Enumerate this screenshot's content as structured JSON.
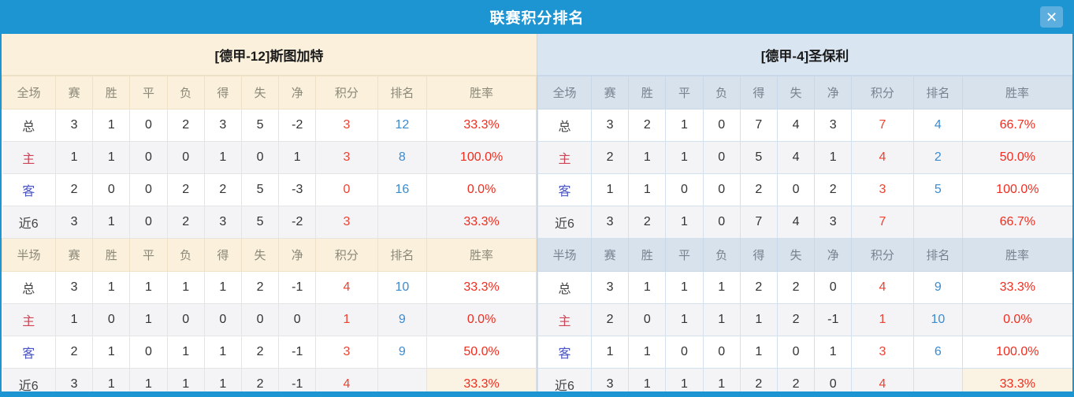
{
  "window": {
    "title": "联赛积分排名",
    "close_glyph": "✕"
  },
  "colors": {
    "accent_blue": "#1d95d3",
    "left_header_bg": "#faf0dc",
    "right_header_bg": "#d8e2ed",
    "points_red": "#ee4130",
    "rank_blue": "#3b8bd0",
    "rate_red": "#ee2e20",
    "home_label_red": "#cc4455",
    "away_label_blue": "#4a55c4"
  },
  "left_panel": {
    "team_title": "[德甲-12]斯图加特",
    "sections": [
      {
        "headers": [
          "全场",
          "赛",
          "胜",
          "平",
          "负",
          "得",
          "失",
          "净",
          "积分",
          "排名",
          "胜率"
        ],
        "rows": [
          {
            "label": "总",
            "type": "total",
            "stats": [
              "3",
              "1",
              "0",
              "2",
              "3",
              "5",
              "-2"
            ],
            "points": "3",
            "rank": "12",
            "rate": "33.3%"
          },
          {
            "label": "主",
            "type": "home",
            "stats": [
              "1",
              "1",
              "0",
              "0",
              "1",
              "0",
              "1"
            ],
            "points": "3",
            "rank": "8",
            "rate": "100.0%"
          },
          {
            "label": "客",
            "type": "away",
            "stats": [
              "2",
              "0",
              "0",
              "2",
              "2",
              "5",
              "-3"
            ],
            "points": "0",
            "rank": "16",
            "rate": "0.0%"
          },
          {
            "label": "近6",
            "type": "recent",
            "stats": [
              "3",
              "1",
              "0",
              "2",
              "3",
              "5",
              "-2"
            ],
            "points": "3",
            "rank": "",
            "rate": "33.3%"
          }
        ]
      },
      {
        "headers": [
          "半场",
          "赛",
          "胜",
          "平",
          "负",
          "得",
          "失",
          "净",
          "积分",
          "排名",
          "胜率"
        ],
        "rows": [
          {
            "label": "总",
            "type": "total",
            "stats": [
              "3",
              "1",
              "1",
              "1",
              "1",
              "2",
              "-1"
            ],
            "points": "4",
            "rank": "10",
            "rate": "33.3%"
          },
          {
            "label": "主",
            "type": "home",
            "stats": [
              "1",
              "0",
              "1",
              "0",
              "0",
              "0",
              "0"
            ],
            "points": "1",
            "rank": "9",
            "rate": "0.0%"
          },
          {
            "label": "客",
            "type": "away",
            "stats": [
              "2",
              "1",
              "0",
              "1",
              "1",
              "2",
              "-1"
            ],
            "points": "3",
            "rank": "9",
            "rate": "50.0%"
          },
          {
            "label": "近6",
            "type": "recent",
            "stats": [
              "3",
              "1",
              "1",
              "1",
              "1",
              "2",
              "-1"
            ],
            "points": "4",
            "rank": "",
            "rate": "33.3%",
            "rate_highlight": true
          }
        ]
      }
    ]
  },
  "right_panel": {
    "team_title": "[德甲-4]圣保利",
    "sections": [
      {
        "headers": [
          "全场",
          "赛",
          "胜",
          "平",
          "负",
          "得",
          "失",
          "净",
          "积分",
          "排名",
          "胜率"
        ],
        "rows": [
          {
            "label": "总",
            "type": "total",
            "stats": [
              "3",
              "2",
              "1",
              "0",
              "7",
              "4",
              "3"
            ],
            "points": "7",
            "rank": "4",
            "rate": "66.7%"
          },
          {
            "label": "主",
            "type": "home",
            "stats": [
              "2",
              "1",
              "1",
              "0",
              "5",
              "4",
              "1"
            ],
            "points": "4",
            "rank": "2",
            "rate": "50.0%"
          },
          {
            "label": "客",
            "type": "away",
            "stats": [
              "1",
              "1",
              "0",
              "0",
              "2",
              "0",
              "2"
            ],
            "points": "3",
            "rank": "5",
            "rate": "100.0%"
          },
          {
            "label": "近6",
            "type": "recent",
            "stats": [
              "3",
              "2",
              "1",
              "0",
              "7",
              "4",
              "3"
            ],
            "points": "7",
            "rank": "",
            "rate": "66.7%"
          }
        ]
      },
      {
        "headers": [
          "半场",
          "赛",
          "胜",
          "平",
          "负",
          "得",
          "失",
          "净",
          "积分",
          "排名",
          "胜率"
        ],
        "rows": [
          {
            "label": "总",
            "type": "total",
            "stats": [
              "3",
              "1",
              "1",
              "1",
              "2",
              "2",
              "0"
            ],
            "points": "4",
            "rank": "9",
            "rate": "33.3%"
          },
          {
            "label": "主",
            "type": "home",
            "stats": [
              "2",
              "0",
              "1",
              "1",
              "1",
              "2",
              "-1"
            ],
            "points": "1",
            "rank": "10",
            "rate": "0.0%"
          },
          {
            "label": "客",
            "type": "away",
            "stats": [
              "1",
              "1",
              "0",
              "0",
              "1",
              "0",
              "1"
            ],
            "points": "3",
            "rank": "6",
            "rate": "100.0%"
          },
          {
            "label": "近6",
            "type": "recent",
            "stats": [
              "3",
              "1",
              "1",
              "1",
              "2",
              "2",
              "0"
            ],
            "points": "4",
            "rank": "",
            "rate": "33.3%",
            "rate_highlight": true
          }
        ]
      }
    ]
  }
}
